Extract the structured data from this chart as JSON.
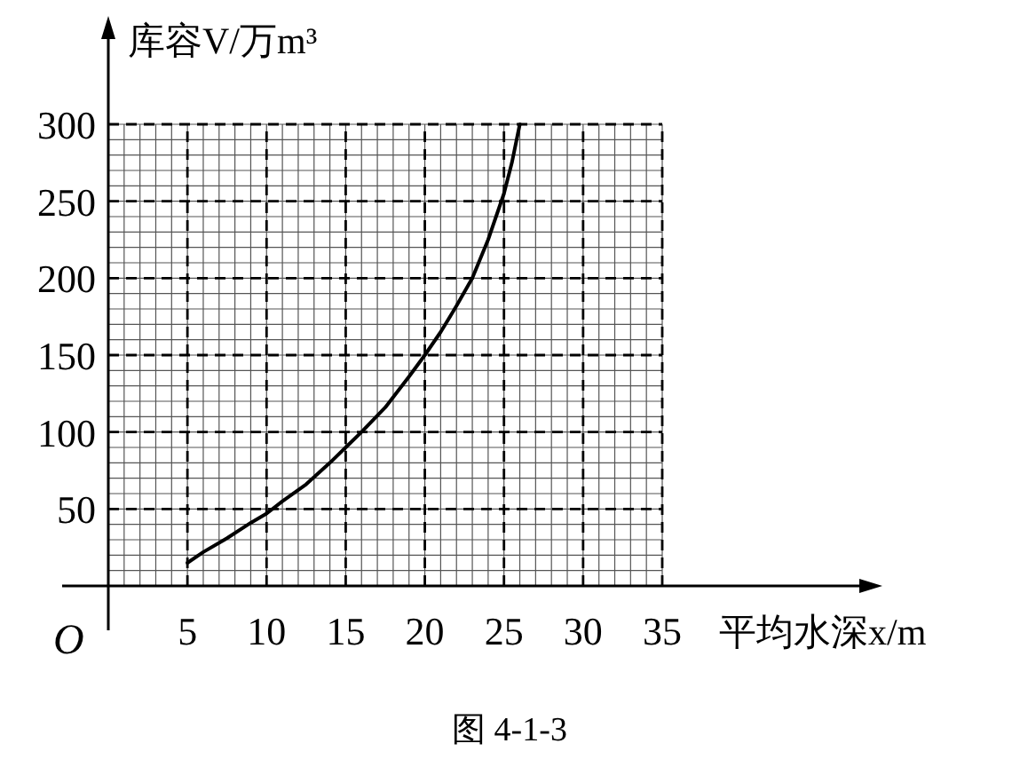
{
  "chart_data": {
    "type": "line",
    "xlabel": "平均水深x/m",
    "ylabel": "库容V/万m³",
    "annotations": [
      "O",
      "图 4-1-3"
    ],
    "xlim": [
      0,
      35
    ],
    "ylim": [
      0,
      300
    ],
    "xticks": [
      5,
      10,
      15,
      20,
      25,
      30,
      35
    ],
    "yticks": [
      50,
      100,
      150,
      200,
      250,
      300
    ],
    "grid": true,
    "marker": "none",
    "line_style": "solid",
    "series": [
      {
        "color": "#000000",
        "x": [
          5,
          6,
          7.5,
          9,
          10,
          11,
          12.5,
          14,
          15,
          16,
          17.5,
          19,
          20,
          21,
          22,
          23,
          24,
          24.5,
          25,
          25.5,
          26
        ],
        "values": [
          15,
          22,
          31,
          41,
          47,
          55,
          66,
          80,
          90,
          100,
          116,
          136,
          150,
          165,
          182,
          200,
          225,
          240,
          255,
          275,
          300
        ]
      }
    ]
  }
}
